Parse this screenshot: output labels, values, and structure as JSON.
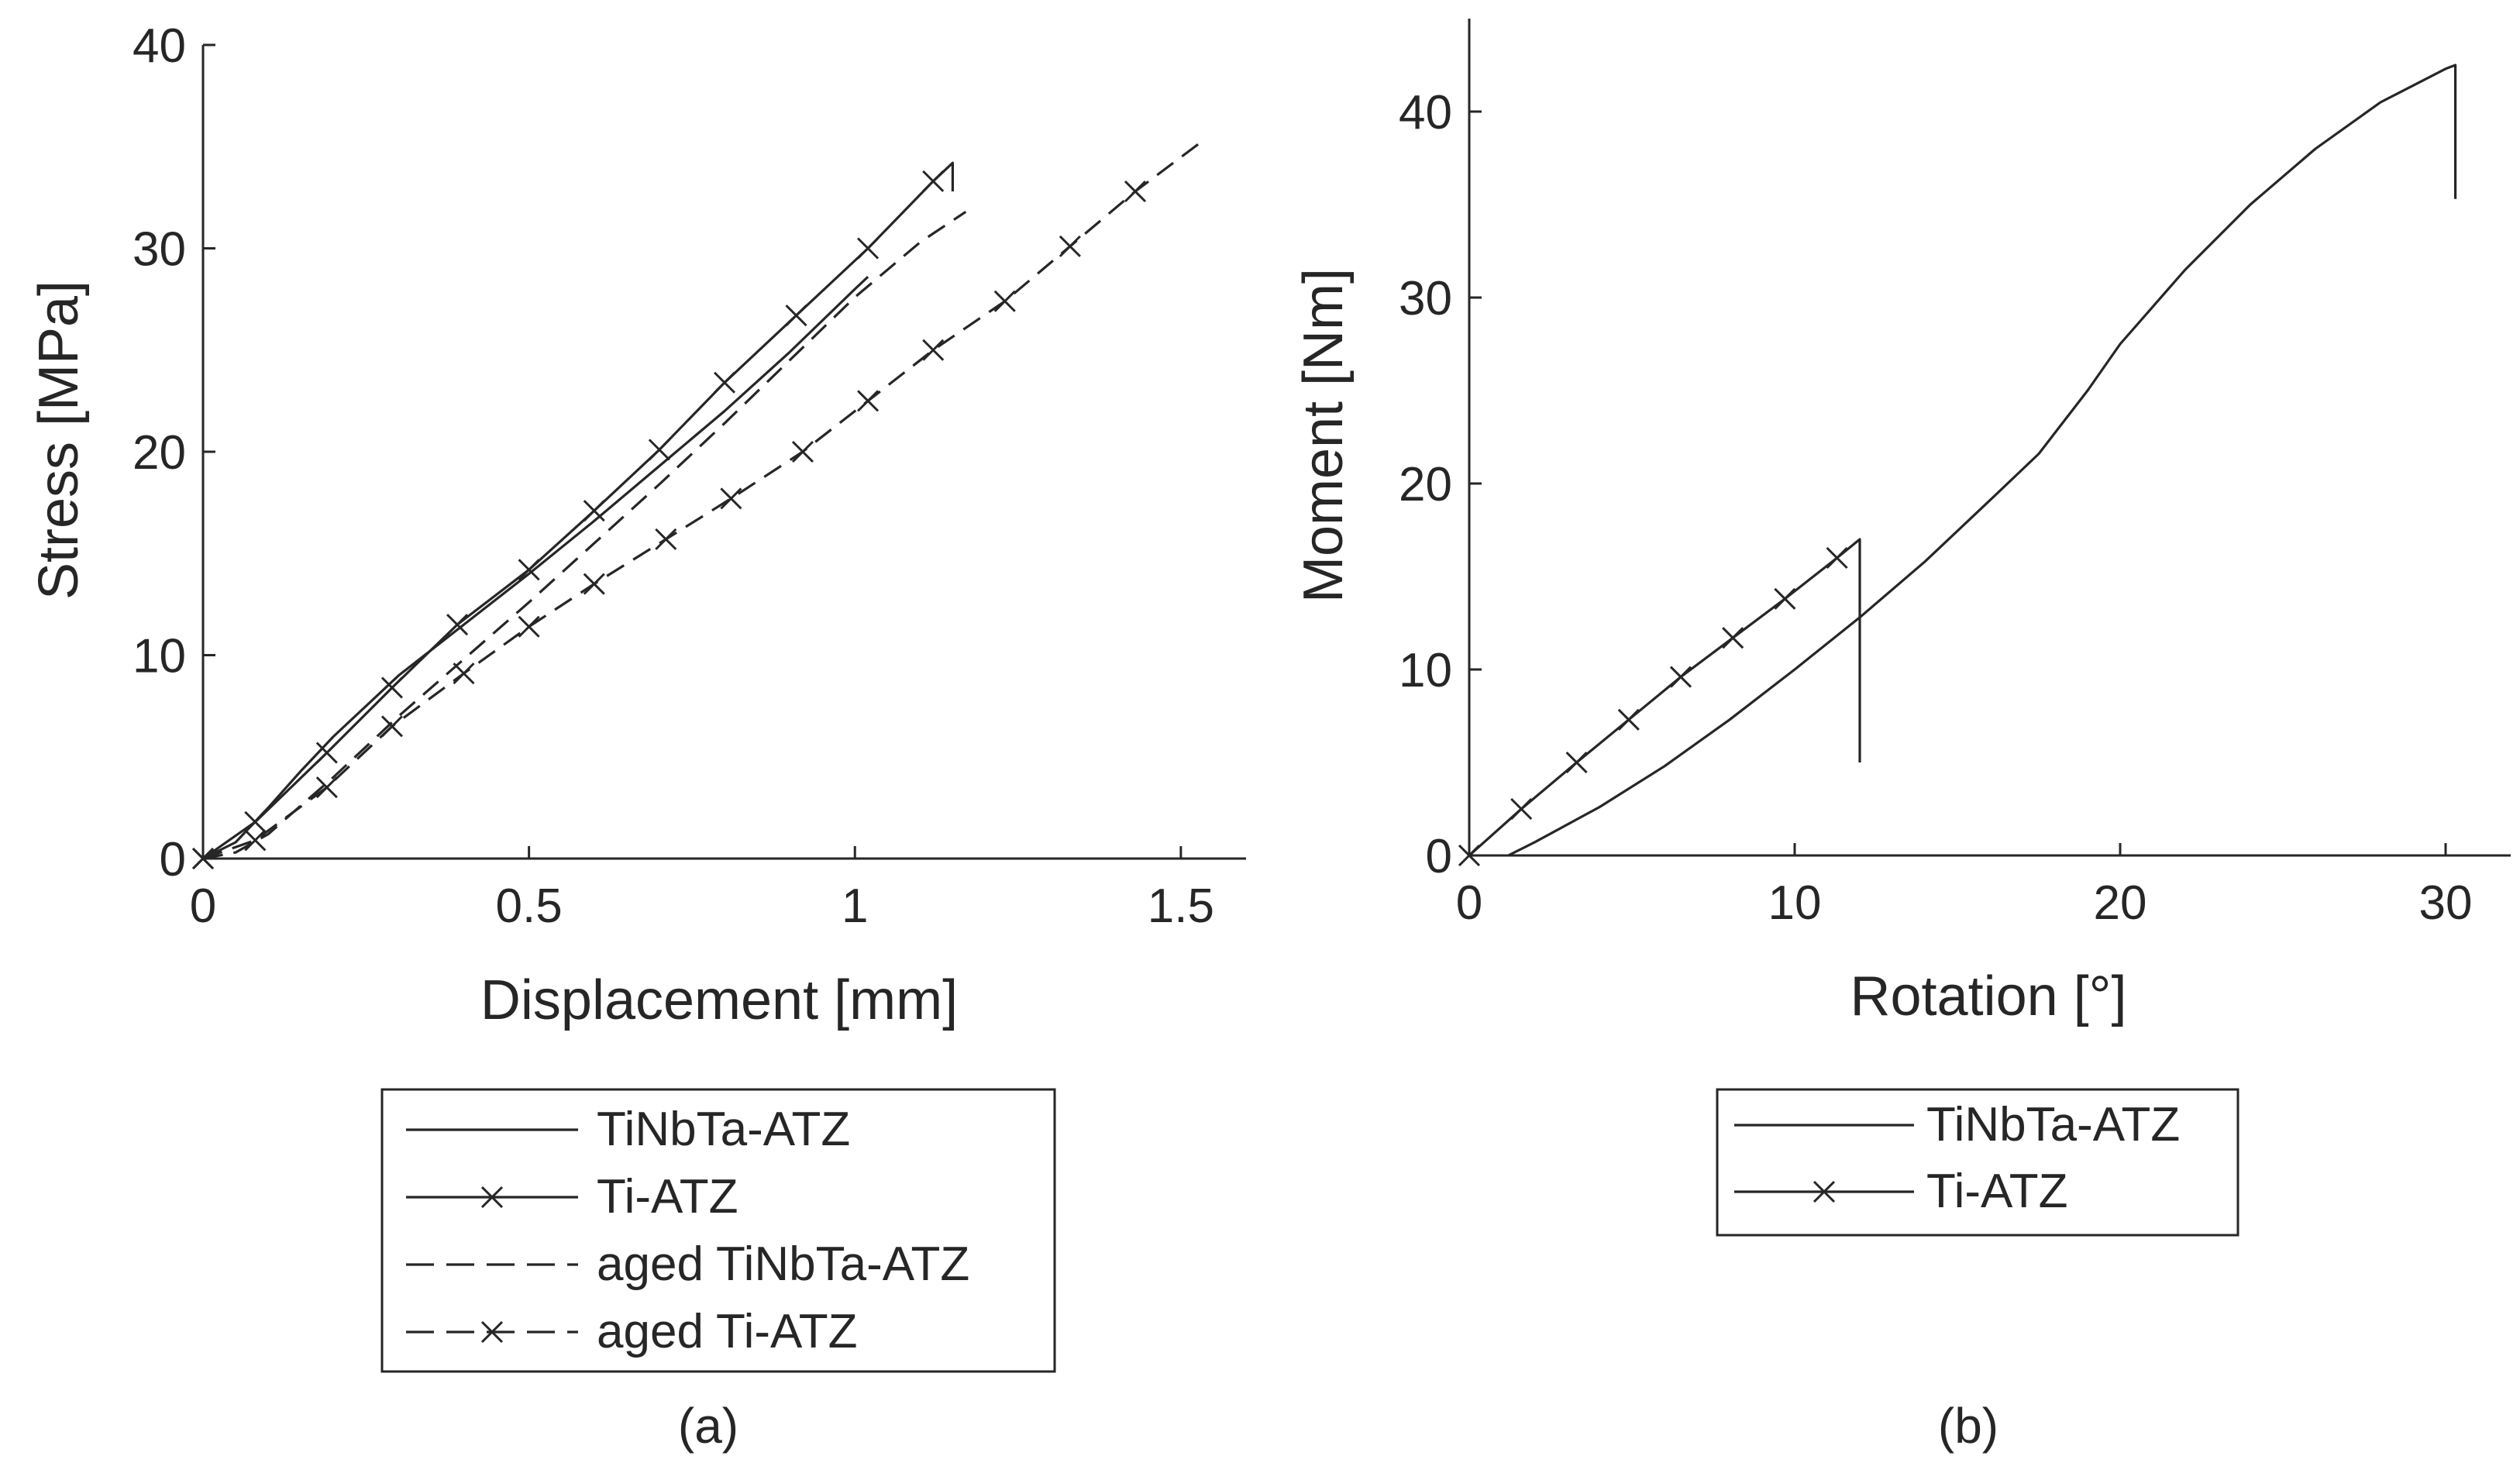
{
  "chart_data": [
    {
      "id": "a",
      "type": "line",
      "caption": "(a)",
      "xlabel": "Displacement [mm]",
      "ylabel": "Stress [MPa]",
      "xlim": [
        0,
        1.6
      ],
      "ylim": [
        0,
        40
      ],
      "xticks": [
        0,
        0.5,
        1,
        1.5
      ],
      "xtick_labels": [
        "0",
        "0.5",
        "1",
        "1.5"
      ],
      "yticks": [
        0,
        10,
        20,
        30,
        40
      ],
      "ytick_labels": [
        "0",
        "10",
        "20",
        "30",
        "40"
      ],
      "legend_position": "below",
      "series": [
        {
          "name": "TiNbTa-ATZ",
          "style": "solid",
          "marker": "none",
          "x": [
            0,
            0.05,
            0.1,
            0.15,
            0.2,
            0.3,
            0.4,
            0.5,
            0.6,
            0.7,
            0.8,
            0.9,
            1.0,
            1.02
          ],
          "y": [
            0,
            0.8,
            2.5,
            4.3,
            6.0,
            9.0,
            11.5,
            14.0,
            16.6,
            19.3,
            22.0,
            24.9,
            28.0,
            28.6
          ]
        },
        {
          "name": "Ti-ATZ",
          "style": "solid",
          "marker": "x",
          "x": [
            0,
            0.08,
            0.19,
            0.29,
            0.39,
            0.5,
            0.6,
            0.7,
            0.8,
            0.91,
            1.02,
            1.12,
            1.15,
            1.15
          ],
          "y": [
            0,
            1.8,
            5.2,
            8.4,
            11.5,
            14.2,
            17.1,
            20.1,
            23.4,
            26.7,
            30.0,
            33.3,
            34.2,
            32.8
          ]
        },
        {
          "name": "aged TiNbTa-ATZ",
          "style": "dashed",
          "marker": "none",
          "x": [
            0,
            0.05,
            0.1,
            0.2,
            0.3,
            0.4,
            0.5,
            0.6,
            0.7,
            0.8,
            0.9,
            1.0,
            1.1,
            1.17
          ],
          "y": [
            0,
            0.3,
            1.2,
            4.0,
            7.0,
            9.8,
            12.6,
            15.5,
            18.4,
            21.4,
            24.5,
            27.6,
            30.3,
            31.8
          ]
        },
        {
          "name": "aged Ti-ATZ",
          "style": "dashed",
          "marker": "x",
          "x": [
            0,
            0.08,
            0.19,
            0.29,
            0.4,
            0.5,
            0.6,
            0.71,
            0.81,
            0.92,
            1.02,
            1.12,
            1.23,
            1.33,
            1.43,
            1.53
          ],
          "y": [
            0,
            0.9,
            3.5,
            6.5,
            9.1,
            11.4,
            13.5,
            15.7,
            17.7,
            20.0,
            22.5,
            25.0,
            27.4,
            30.1,
            32.8,
            35.2
          ]
        }
      ]
    },
    {
      "id": "b",
      "type": "line",
      "caption": "(b)",
      "xlabel": "Rotation [°]",
      "ylabel": "Moment [Nm]",
      "xlim": [
        0,
        32
      ],
      "ylim": [
        0,
        45
      ],
      "xticks": [
        0,
        10,
        20,
        30
      ],
      "xtick_labels": [
        "0",
        "10",
        "20",
        "30"
      ],
      "yticks": [
        0,
        10,
        20,
        30,
        40
      ],
      "ytick_labels": [
        "0",
        "10",
        "20",
        "30",
        "40"
      ],
      "legend_position": "below",
      "series": [
        {
          "name": "TiNbTa-ATZ",
          "style": "solid",
          "marker": "none",
          "x": [
            1.2,
            2,
            4,
            6,
            8,
            10,
            12,
            14,
            16,
            17.5,
            19,
            20,
            22,
            24,
            26,
            28,
            30,
            30.3,
            30.3
          ],
          "y": [
            0,
            0.7,
            2.6,
            4.8,
            7.3,
            10.0,
            12.8,
            15.8,
            19.1,
            21.6,
            25.0,
            27.5,
            31.5,
            35.0,
            38.0,
            40.5,
            42.3,
            42.5,
            35.3
          ]
        },
        {
          "name": "Ti-ATZ",
          "style": "solid",
          "marker": "x",
          "x": [
            0,
            1.6,
            3.3,
            4.9,
            6.5,
            8.1,
            9.7,
            11.3,
            12.0,
            12.0
          ],
          "y": [
            0,
            2.5,
            5.0,
            7.3,
            9.6,
            11.7,
            13.8,
            16.0,
            17.0,
            5.0
          ]
        }
      ]
    }
  ]
}
